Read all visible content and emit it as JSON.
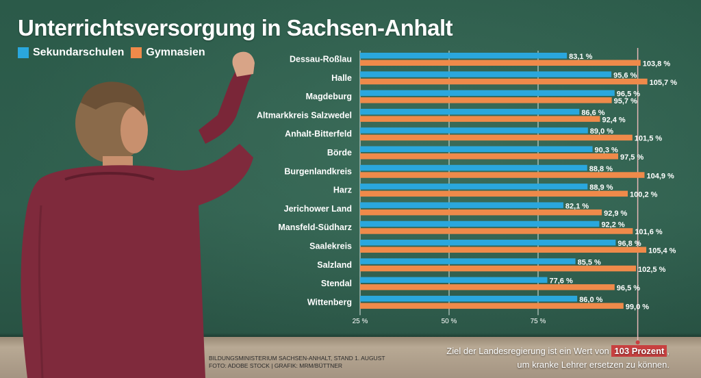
{
  "header": {
    "title": "Unterrichtsversorgung in Sachsen-Anhalt"
  },
  "legend": [
    {
      "label": "Sekundarschulen",
      "color": "#2aa7dd"
    },
    {
      "label": "Gymnasien",
      "color": "#ef8a4a"
    }
  ],
  "footer": {
    "source_line1": "BILDUNGSMINISTERIUM SACHSEN-ANHALT, STAND 1. AUGUST",
    "source_line2": "FOTO: ADOBE STOCK | GRAFIK: MRM/BÜTTNER",
    "note_part1": "Ziel der Landesregierung ist ein Wert von ",
    "note_highlight": "103 Prozent",
    "note_part2": ",",
    "note_line2": "um kranke Lehrer ersetzen zu können."
  },
  "colors": {
    "sekundarschulen": "#2aa7dd",
    "gymnasien": "#ef8a4a",
    "highlight": "#c84040"
  },
  "chart_data": {
    "type": "bar",
    "orientation": "horizontal",
    "title": "Unterrichtsversorgung in Sachsen-Anhalt",
    "categories": [
      "Dessau-Roßlau",
      "Halle",
      "Magdeburg",
      "Altmarkkreis Salzwedel",
      "Anhalt-Bitterfeld",
      "Börde",
      "Burgenlandkreis",
      "Harz",
      "Jerichower Land",
      "Mansfeld-Südharz",
      "Saalekreis",
      "Salzland",
      "Stendal",
      "Wittenberg"
    ],
    "series": [
      {
        "name": "Sekundarschulen",
        "values": [
          83.1,
          95.6,
          96.5,
          86.6,
          89.0,
          90.3,
          88.8,
          88.9,
          82.1,
          92.2,
          96.8,
          85.5,
          77.6,
          86.0
        ],
        "labels": [
          "83,1 %",
          "95,6 %",
          "96,5 %",
          "86,6 %",
          "89,0 %",
          "90,3 %",
          "88,8 %",
          "88,9 %",
          "82,1 %",
          "92,2 %",
          "96,8 %",
          "85,5 %",
          "77,6 %",
          "86,0 %"
        ]
      },
      {
        "name": "Gymnasien",
        "values": [
          103.8,
          105.7,
          95.7,
          92.4,
          101.5,
          97.5,
          104.9,
          100.2,
          92.9,
          101.6,
          105.4,
          102.5,
          96.5,
          99.0
        ],
        "labels": [
          "103,8 %",
          "105,7 %",
          "95,7 %",
          "92,4 %",
          "101,5 %",
          "97,5 %",
          "104,9 %",
          "100,2 %",
          "92,9 %",
          "101,6 %",
          "105,4 %",
          "102,5 %",
          "96,5 %",
          "99,0 %"
        ]
      }
    ],
    "x_ticks": [
      25,
      50,
      75
    ],
    "x_tick_labels": [
      "25 %",
      "50 %",
      "75 %"
    ],
    "xlim": [
      25,
      114
    ],
    "target_line": 103,
    "grid": true,
    "legend_position": "top-left"
  }
}
